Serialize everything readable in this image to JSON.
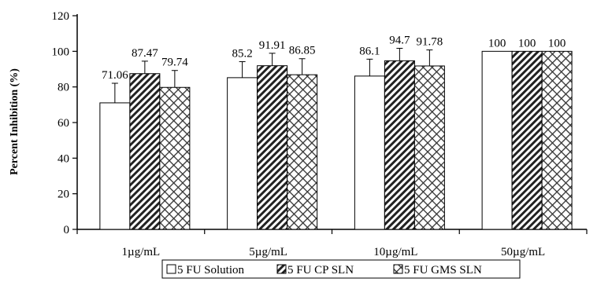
{
  "chart_data": {
    "type": "bar",
    "title": "",
    "xlabel": "",
    "ylabel": "Percent Inhibition (%)",
    "ylim": [
      0,
      120
    ],
    "yticks": [
      0,
      20,
      40,
      60,
      80,
      100,
      120
    ],
    "grid": false,
    "legend_position": "bottom",
    "categories": [
      "1µg/mL",
      "5µg/mL",
      "10µg/mL",
      "50µg/mL"
    ],
    "series": [
      {
        "name": "5 FU Solution",
        "pattern": "none",
        "values": [
          71.06,
          85.2,
          86.1,
          100
        ],
        "labels": [
          "71.06",
          "85.2",
          "86.1",
          "100"
        ],
        "errors": [
          11,
          9,
          9.5,
          0
        ]
      },
      {
        "name": "5 FU CP SLN",
        "pattern": "diagonal-hatch",
        "values": [
          87.47,
          91.91,
          94.7,
          100
        ],
        "labels": [
          "87.47",
          "91.91",
          "94.7",
          "100"
        ],
        "errors": [
          7,
          7,
          7,
          0
        ]
      },
      {
        "name": "5 FU GMS SLN",
        "pattern": "crosshatch",
        "values": [
          79.74,
          86.85,
          91.78,
          100
        ],
        "labels": [
          "79.74",
          "86.85",
          "91.78",
          "100"
        ],
        "errors": [
          9.5,
          9,
          9,
          0
        ]
      }
    ]
  }
}
